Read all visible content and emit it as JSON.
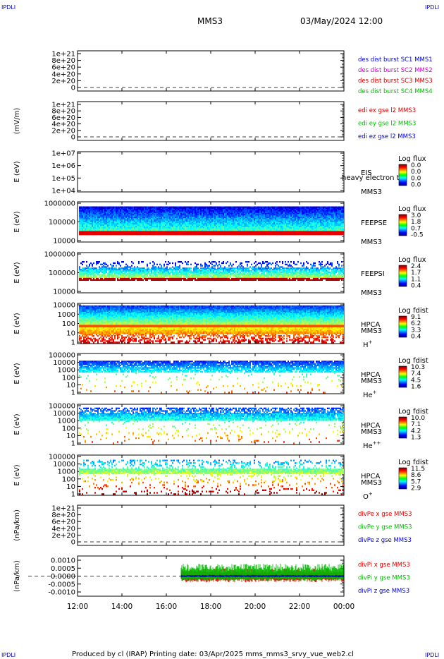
{
  "corner_marks": [
    "IPDLI",
    "IPDLI",
    "IPDLI",
    "IPDLI"
  ],
  "header": {
    "spacecraft": "MMS3",
    "datetime": "03/May/2024 12:00"
  },
  "footer": {
    "text": "Produced by cl (IRAP)   Printing date: 03/Apr/2025   mms_mms3_srvy_vue_web2.cl"
  },
  "colors": {
    "mms1": "#0000cc",
    "mms2": "#cc00cc",
    "mms3": "#cc0000",
    "mms4": "#00bb00",
    "x": "#dd0000",
    "y": "#00bb00",
    "z": "#0000cc"
  },
  "x_axis": {
    "ticks": [
      "12:00",
      "14:00",
      "16:00",
      "18:00",
      "20:00",
      "22:00",
      "00:00"
    ]
  },
  "chart_data": [
    {
      "type": "line",
      "ylabel": "",
      "yticks": [
        "1e+21",
        "8e+20",
        "6e+20",
        "4e+20",
        "2e+20",
        "0"
      ],
      "ylim": [
        0,
        1e+21
      ],
      "zero_line": "dashed",
      "series": [
        {
          "name": "des dist burst SC1 MMS1",
          "color": "#0000cc",
          "values": []
        },
        {
          "name": "des dist burst SC2 MMS2",
          "color": "#cc00cc",
          "values": []
        },
        {
          "name": "des dist burst SC3 MMS3",
          "color": "#cc0000",
          "values": []
        },
        {
          "name": "des dist burst SC4 MMS4",
          "color": "#00bb00",
          "values": []
        }
      ]
    },
    {
      "type": "line",
      "ylabel": "(mV/m)",
      "yticks": [
        "1e+21",
        "8e+20",
        "6e+20",
        "4e+20",
        "2e+20",
        "0"
      ],
      "ylim": [
        0,
        1e+21
      ],
      "zero_line": "dashed",
      "series": [
        {
          "name": "edi ex gse l2 MMS3",
          "color": "#cc0000",
          "values": []
        },
        {
          "name": "edi ey gse l2 MMS3",
          "color": "#00bb00",
          "values": []
        },
        {
          "name": "edi ez gse l2 MMS3",
          "color": "#0000cc",
          "values": []
        }
      ]
    },
    {
      "type": "heatmap",
      "ylabel": "E (eV)",
      "yticks": [
        "1e+07",
        "1e+06",
        "1e+05",
        "1e+04"
      ],
      "ylim": [
        10000,
        10000000
      ],
      "yscale": "log",
      "labels": [
        "EIS",
        "MMS3"
      ],
      "overlay_text": "heavy electron to",
      "colorbar": {
        "title": "Log flux",
        "ticks": [
          "0.0",
          "0.0",
          "0.0",
          "0.0"
        ]
      },
      "filled": false
    },
    {
      "type": "heatmap",
      "ylabel": "E (eV)",
      "yticks": [
        "1000000",
        "100000",
        "10000"
      ],
      "ylim": [
        10000,
        1000000
      ],
      "yscale": "log",
      "labels": [
        "FEEPSE",
        "MMS3"
      ],
      "colorbar": {
        "title": "Log flux",
        "ticks": [
          "3.0",
          "1.8",
          "0.7",
          "-0.5"
        ]
      },
      "filled": true,
      "time_range": [
        "12:00",
        "00:00"
      ]
    },
    {
      "type": "heatmap",
      "ylabel": "E (eV)",
      "yticks": [
        "1000000",
        "100000",
        "10000"
      ],
      "ylim": [
        10000,
        1000000
      ],
      "yscale": "log",
      "labels": [
        "FEEPSI",
        "MMS3"
      ],
      "colorbar": {
        "title": "Log flux",
        "ticks": [
          "2.4",
          "1.7",
          "1.1",
          "0.4"
        ]
      },
      "filled": true,
      "time_range": [
        "12:00",
        "00:00"
      ]
    },
    {
      "type": "heatmap",
      "ylabel": "E (eV)",
      "yticks": [
        "10000",
        "1000",
        "100",
        "10",
        "1"
      ],
      "ylim": [
        1,
        40000
      ],
      "yscale": "log",
      "labels": [
        "HPCA",
        "MMS3",
        "H+"
      ],
      "species": "H",
      "species_sup": "+",
      "colorbar": {
        "title": "Log fdist",
        "ticks": [
          "9.1",
          "6.2",
          "3.3",
          "0.4"
        ]
      },
      "filled": true,
      "time_range": [
        "12:00",
        "00:00"
      ]
    },
    {
      "type": "heatmap",
      "ylabel": "E (eV)",
      "yticks": [
        "100000",
        "10000",
        "1000",
        "100",
        "10",
        "1"
      ],
      "ylim": [
        1,
        100000
      ],
      "yscale": "log",
      "labels": [
        "HPCA",
        "MMS3",
        "He+"
      ],
      "species": "He",
      "species_sup": "+",
      "colorbar": {
        "title": "Log fdist",
        "ticks": [
          "10.3",
          "7.4",
          "4.5",
          "1.6"
        ]
      },
      "filled": true,
      "time_range": [
        "12:00",
        "00:00"
      ]
    },
    {
      "type": "heatmap",
      "ylabel": "E (eV)",
      "yticks": [
        "100000",
        "10000",
        "1000",
        "100",
        "10",
        "1"
      ],
      "ylim": [
        1,
        100000
      ],
      "yscale": "log",
      "labels": [
        "HPCA",
        "MMS3",
        "He++"
      ],
      "species": "He",
      "species_sup": "++",
      "colorbar": {
        "title": "Log fdist",
        "ticks": [
          "10.0",
          "7.1",
          "4.2",
          "1.3"
        ]
      },
      "filled": true,
      "time_range": [
        "12:00",
        "00:00"
      ]
    },
    {
      "type": "heatmap",
      "ylabel": "E (eV)",
      "yticks": [
        "100000",
        "10000",
        "1000",
        "100",
        "10",
        "1"
      ],
      "ylim": [
        1,
        100000
      ],
      "yscale": "log",
      "labels": [
        "HPCA",
        "MMS3",
        "O+"
      ],
      "species": "O",
      "species_sup": "+",
      "colorbar": {
        "title": "Log fdist",
        "ticks": [
          "11.5",
          "8.6",
          "5.7",
          "2.9"
        ]
      },
      "filled": true,
      "time_range": [
        "12:00",
        "00:00"
      ]
    },
    {
      "type": "line",
      "ylabel": "(nPa/km)",
      "yticks": [
        "1e+21",
        "8e+20",
        "6e+20",
        "4e+20",
        "2e+20",
        "0"
      ],
      "ylim": [
        0,
        1e+21
      ],
      "zero_line": "dashed",
      "series": [
        {
          "name": "divPe x gse MMS3",
          "color": "#dd0000",
          "values": []
        },
        {
          "name": "divPe y gse MMS3",
          "color": "#00bb00",
          "values": []
        },
        {
          "name": "divPe z gse MMS3",
          "color": "#0000cc",
          "values": []
        }
      ]
    },
    {
      "type": "line",
      "ylabel": "(nPa/km)",
      "yticks": [
        "0.0010",
        "0.0005",
        "0.0000",
        "-0.0005",
        "-0.0010"
      ],
      "ylim": [
        -0.0013,
        0.0013
      ],
      "zero_line": "dashed",
      "data_start": "16:40",
      "data_end": "00:00",
      "series": [
        {
          "name": "divPi x gse MMS3",
          "color": "#dd0000",
          "approx_range": [
            -0.0004,
            0.0005
          ]
        },
        {
          "name": "divPi y gse MMS3",
          "color": "#00bb00",
          "approx_range": [
            -0.0003,
            0.0008
          ]
        },
        {
          "name": "divPi z gse MMS3",
          "color": "#0000cc",
          "approx_range": [
            -0.0002,
            0.0002
          ]
        }
      ]
    }
  ]
}
